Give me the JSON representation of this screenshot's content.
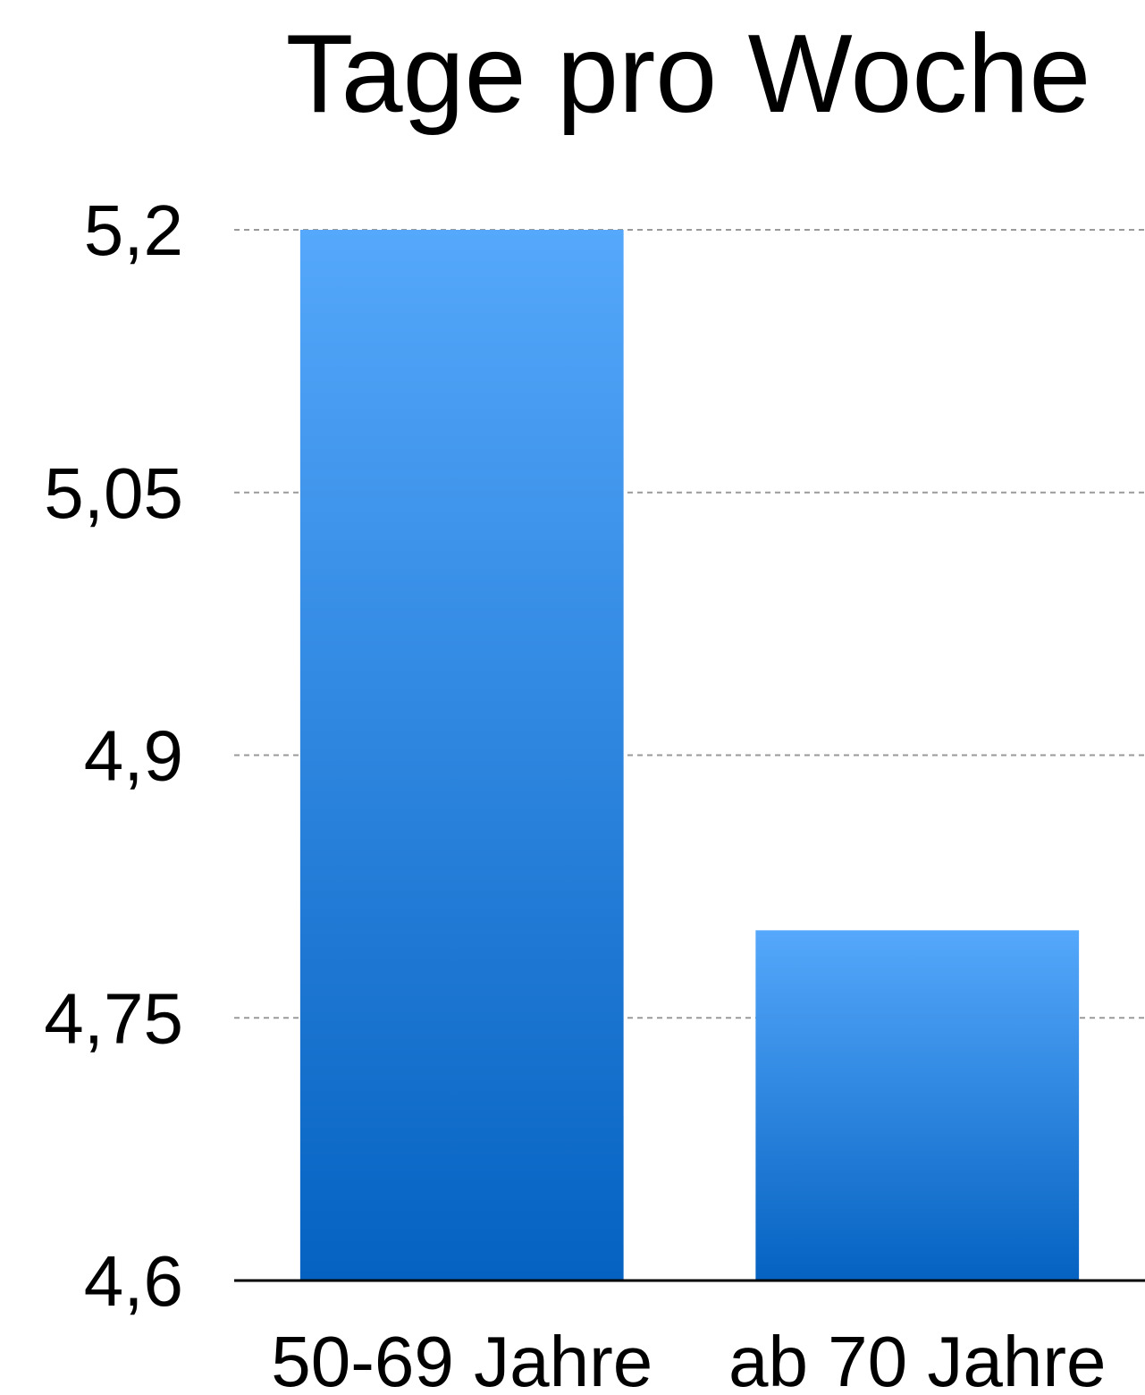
{
  "chart_data": {
    "type": "bar",
    "title": "Tage pro Woche",
    "categories": [
      "50-69 Jahre",
      "ab 70 Jahre"
    ],
    "values": [
      5.2,
      4.8
    ],
    "ylim": [
      4.6,
      5.2
    ],
    "yticks": [
      {
        "value": 4.6,
        "label": "4,6"
      },
      {
        "value": 4.75,
        "label": "4,75"
      },
      {
        "value": 4.9,
        "label": "4,9"
      },
      {
        "value": 5.05,
        "label": "5,05"
      },
      {
        "value": 5.2,
        "label": "5,2"
      }
    ],
    "grid": true,
    "legend": "none",
    "colors": {
      "bar_top": "#55a8fb",
      "bar_bottom": "#0562c1",
      "gridline": "#9a9a9a",
      "axis": "#000000",
      "text": "#000000"
    }
  }
}
